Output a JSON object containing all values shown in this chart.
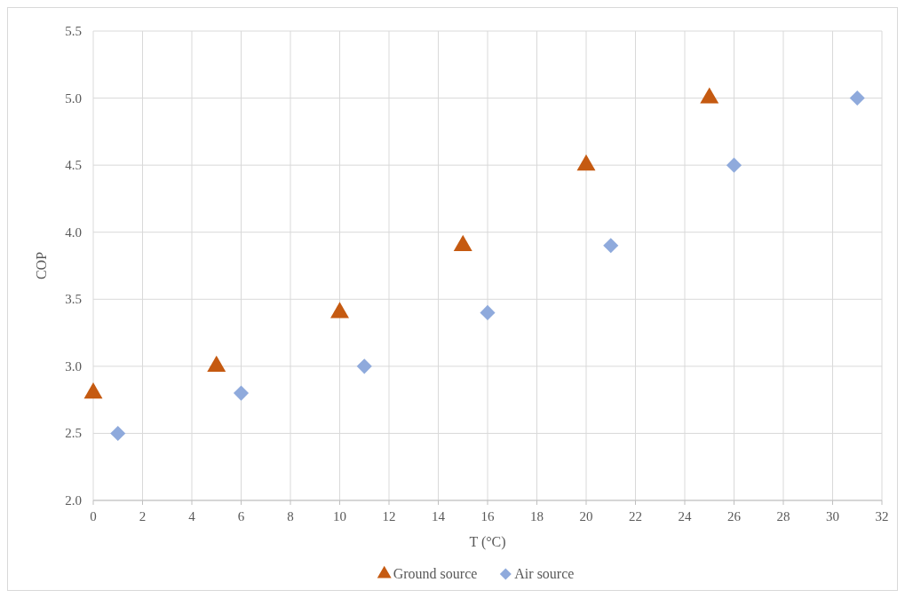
{
  "chart_data": {
    "type": "scatter",
    "xlabel": "T (°C)",
    "ylabel": "COP",
    "xlim": [
      0,
      32
    ],
    "xticks": [
      0,
      2,
      4,
      6,
      8,
      10,
      12,
      14,
      16,
      18,
      20,
      22,
      24,
      26,
      28,
      30,
      32
    ],
    "ylim": [
      2,
      5.5
    ],
    "yticks": [
      {
        "value": 2,
        "label": "2.0"
      },
      {
        "value": 2.5,
        "label": "2.5"
      },
      {
        "value": 3,
        "label": "3.0"
      },
      {
        "value": 3.5,
        "label": "3.5"
      },
      {
        "value": 4,
        "label": "4.0"
      },
      {
        "value": 4.5,
        "label": "4.5"
      },
      {
        "value": 5,
        "label": "5.0"
      },
      {
        "value": 5.5,
        "label": "5.5"
      }
    ],
    "grid": true,
    "legend": "bottom",
    "series": [
      {
        "name": "Ground source",
        "color": "#c55a11",
        "marker": "triangle",
        "x": [
          0,
          5,
          10,
          15,
          20,
          25
        ],
        "values": [
          2.8,
          3.0,
          3.4,
          3.9,
          4.5,
          5.0
        ]
      },
      {
        "name": "Air source",
        "color": "#8faadc",
        "marker": "diamond",
        "x": [
          1,
          6,
          11,
          16,
          21,
          26,
          31
        ],
        "values": [
          2.5,
          2.8,
          3.0,
          3.4,
          3.9,
          4.5,
          5.0
        ]
      }
    ]
  }
}
